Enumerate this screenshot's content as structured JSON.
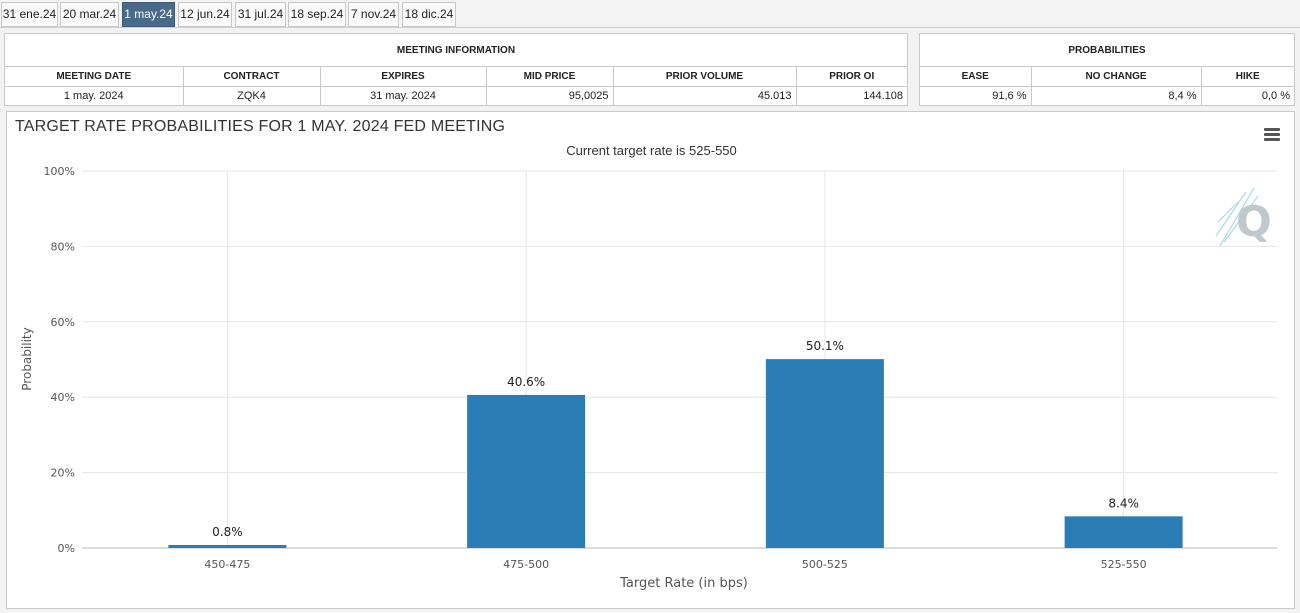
{
  "tabs": [
    {
      "label": "31 ene.24",
      "active": false
    },
    {
      "label": "20 mar.24",
      "active": false
    },
    {
      "label": "1 may.24",
      "active": true
    },
    {
      "label": "12 jun.24",
      "active": false
    },
    {
      "label": "31 jul.24",
      "active": false
    },
    {
      "label": "18 sep.24",
      "active": false
    },
    {
      "label": "7 nov.24",
      "active": false
    },
    {
      "label": "18 dic.24",
      "active": false
    }
  ],
  "meeting_info": {
    "header": "MEETING INFORMATION",
    "columns": [
      "MEETING DATE",
      "CONTRACT",
      "EXPIRES",
      "MID PRICE",
      "PRIOR VOLUME",
      "PRIOR OI"
    ],
    "values": [
      "1 may. 2024",
      "ZQK4",
      "31 may. 2024",
      "95,0025",
      "45.013",
      "144.108"
    ]
  },
  "probabilities": {
    "header": "PROBABILITIES",
    "columns": [
      "EASE",
      "NO CHANGE",
      "HIKE"
    ],
    "values": [
      "91,6 %",
      "8,4 %",
      "0,0 %"
    ]
  },
  "chart_data": {
    "type": "bar",
    "title": "TARGET RATE PROBABILITIES FOR 1 MAY. 2024 FED MEETING",
    "subtitle": "Current target rate is 525-550",
    "xlabel": "Target Rate (in bps)",
    "ylabel": "Probability",
    "categories": [
      "450-475",
      "475-500",
      "500-525",
      "525-550"
    ],
    "values": [
      0.8,
      40.6,
      50.1,
      8.4
    ],
    "data_labels": [
      "0.8%",
      "40.6%",
      "50.1%",
      "8.4%"
    ],
    "yticks": [
      "0%",
      "20%",
      "40%",
      "60%",
      "80%",
      "100%"
    ],
    "ylim": [
      0,
      100
    ],
    "grid": true,
    "bar_color": "#2a7db5"
  }
}
